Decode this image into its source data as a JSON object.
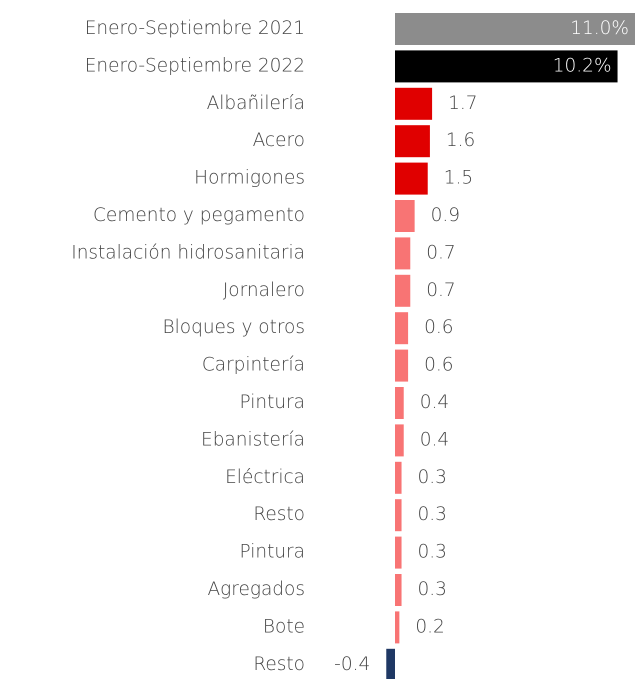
{
  "chart_data": {
    "type": "bar",
    "orientation": "horizontal",
    "categories": [
      "Enero-Septiembre 2021",
      "Enero-Septiembre 2022",
      "Albañilería",
      "Acero",
      "Hormigones",
      "Cemento y  pegamento",
      "Instalación hidrosanitaria",
      "Jornalero",
      "Bloques y otros",
      "Carpintería",
      "Pintura",
      "Ebanistería",
      "Eléctrica",
      "Resto",
      "Pintura",
      "Agregados",
      "Bote",
      "Resto"
    ],
    "values": [
      11.0,
      10.2,
      1.7,
      1.6,
      1.5,
      0.9,
      0.7,
      0.7,
      0.6,
      0.6,
      0.4,
      0.4,
      0.3,
      0.3,
      0.3,
      0.3,
      0.2,
      -0.4
    ],
    "value_labels": [
      "11.0%",
      "10.2%",
      "1.7",
      "1.6",
      "1.5",
      "0.9",
      "0.7",
      "0.7",
      "0.6",
      "0.6",
      "0.4",
      "0.4",
      "0.3",
      "0.3",
      "0.3",
      "0.3",
      "0.2",
      "-0.4"
    ],
    "colors": [
      "#8c8c8c",
      "#000000",
      "#e00000",
      "#e00000",
      "#e00000",
      "#f87474",
      "#f87474",
      "#f87474",
      "#f87474",
      "#f87474",
      "#f87474",
      "#f87474",
      "#f87474",
      "#f87474",
      "#f87474",
      "#f87474",
      "#f87474",
      "#1f3864"
    ]
  }
}
